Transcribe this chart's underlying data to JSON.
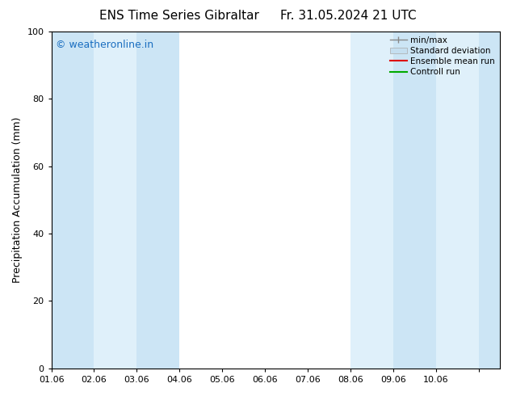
{
  "title": "ENS Time Series Gibraltar",
  "title2": "Fr. 31.05.2024 21 UTC",
  "ylabel": "Precipitation Accumulation (mm)",
  "xlim": [
    0,
    10.5
  ],
  "ylim": [
    0,
    100
  ],
  "yticks": [
    0,
    20,
    40,
    60,
    80,
    100
  ],
  "xtick_positions": [
    0,
    1,
    2,
    3,
    4,
    5,
    6,
    7,
    8,
    9,
    10
  ],
  "xtick_labels": [
    "01.06",
    "02.06",
    "03.06",
    "04.06",
    "05.06",
    "06.06",
    "07.06",
    "08.06",
    "09.06",
    "10.06",
    ""
  ],
  "background_color": "#ffffff",
  "plot_bg_color": "#ffffff",
  "watermark": "© weatheronline.in",
  "watermark_color": "#1a6ec0",
  "shaded_bands": [
    {
      "x_start": 0,
      "x_end": 1,
      "color": "#cce5f5"
    },
    {
      "x_start": 1,
      "x_end": 2,
      "color": "#dff0fa"
    },
    {
      "x_start": 2,
      "x_end": 3,
      "color": "#cce5f5"
    },
    {
      "x_start": 7,
      "x_end": 8,
      "color": "#dff0fa"
    },
    {
      "x_start": 8,
      "x_end": 9,
      "color": "#cce5f5"
    },
    {
      "x_start": 9,
      "x_end": 10,
      "color": "#dff0fa"
    },
    {
      "x_start": 10,
      "x_end": 10.5,
      "color": "#cce5f5"
    }
  ],
  "legend_items": [
    {
      "label": "min/max",
      "type": "minmax",
      "color": "#888888"
    },
    {
      "label": "Standard deviation",
      "type": "fillbetween",
      "facecolor": "#c5dff0",
      "edgecolor": "#aaaaaa"
    },
    {
      "label": "Ensemble mean run",
      "type": "line",
      "color": "#dd0000"
    },
    {
      "label": "Controll run",
      "type": "line",
      "color": "#00aa00"
    }
  ],
  "title_fontsize": 11,
  "tick_fontsize": 8,
  "ylabel_fontsize": 9,
  "watermark_fontsize": 9
}
